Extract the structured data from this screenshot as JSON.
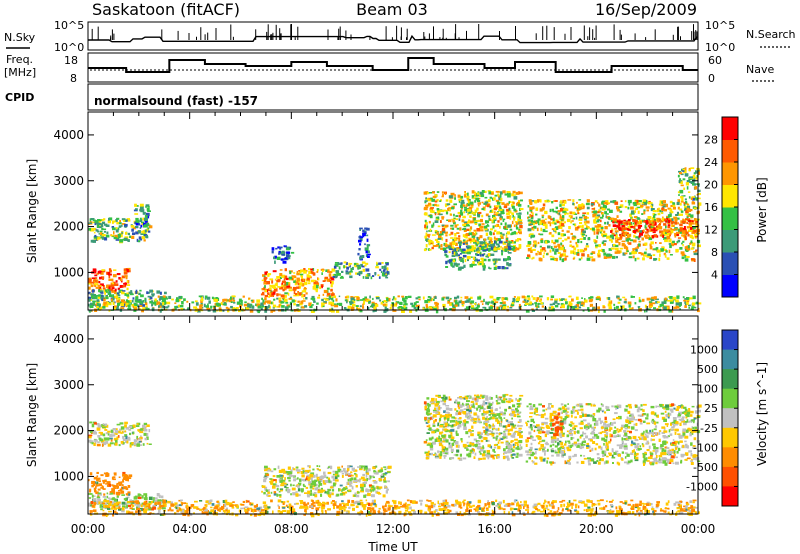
{
  "header": {
    "station": "Saskatoon (fitACF)",
    "beam": "Beam 03",
    "date": "16/Sep/2009"
  },
  "strip_nsky": {
    "left_label": "N.Sky",
    "left_top": "10^5",
    "left_bottom": "10^0",
    "right_label": "N.Search",
    "right_top": "10^5",
    "right_bottom": "10^0"
  },
  "strip_freq": {
    "left_label": "Freq.",
    "left_unit": "[MHz]",
    "left_top": "18",
    "left_bottom": "8",
    "right_label": "Nave",
    "right_top": "60",
    "right_bottom": "0"
  },
  "cpid": {
    "label": "CPID",
    "text": "normalsound (fast) -157"
  },
  "chart_data": [
    {
      "type": "heatmap",
      "name": "power",
      "ylabel": "Slant Range [km]",
      "xlabel": "",
      "ylim": [
        180,
        4500
      ],
      "y_ticks": [
        "1000",
        "2000",
        "3000",
        "4000"
      ],
      "colorbar_label": "Power [dB]",
      "colorbar_ticks": [
        "4",
        "8",
        "12",
        "16",
        "20",
        "24",
        "28"
      ],
      "colorbar_colors": [
        "#0000ff",
        "#2a50b4",
        "#3c9a78",
        "#34c044",
        "#ffe600",
        "#ff9600",
        "#ff5a00",
        "#ff0000"
      ],
      "echo_regions": [
        {
          "t": [
            0.0,
            1.6
          ],
          "r": [
            600,
            1100
          ],
          "val": 26
        },
        {
          "t": [
            0.0,
            3.0
          ],
          "r": [
            300,
            650
          ],
          "val": 12
        },
        {
          "t": [
            0.0,
            2.4
          ],
          "r": [
            1700,
            2200
          ],
          "val": 14
        },
        {
          "t": [
            1.8,
            2.4
          ],
          "r": [
            2000,
            2500
          ],
          "val": 10
        },
        {
          "t": [
            6.8,
            9.6
          ],
          "r": [
            500,
            1100
          ],
          "val": 22
        },
        {
          "t": [
            9.6,
            11.8
          ],
          "r": [
            900,
            1250
          ],
          "val": 12
        },
        {
          "t": [
            7.2,
            8.0
          ],
          "r": [
            1200,
            1600
          ],
          "val": 8
        },
        {
          "t": [
            10.6,
            11.0
          ],
          "r": [
            1300,
            2000
          ],
          "val": 6
        },
        {
          "t": [
            13.2,
            17.0
          ],
          "r": [
            1500,
            2800
          ],
          "val": 18
        },
        {
          "t": [
            14.0,
            16.6
          ],
          "r": [
            1100,
            1700
          ],
          "val": 12
        },
        {
          "t": [
            17.2,
            24.0
          ],
          "r": [
            1300,
            2600
          ],
          "val": 18
        },
        {
          "t": [
            20.5,
            24.0
          ],
          "r": [
            1800,
            2200
          ],
          "val": 26
        },
        {
          "t": [
            23.2,
            24.0
          ],
          "r": [
            2600,
            3300
          ],
          "val": 14
        },
        {
          "t": [
            0.0,
            24.0
          ],
          "r": [
            180,
            500
          ],
          "val": 16
        }
      ]
    },
    {
      "type": "heatmap",
      "name": "velocity",
      "ylabel": "Slant Range [km]",
      "xlabel": "Time UT",
      "ylim": [
        180,
        4500
      ],
      "y_ticks": [
        "1000",
        "2000",
        "3000",
        "4000"
      ],
      "x_ticks": [
        "00:00",
        "04:00",
        "08:00",
        "12:00",
        "16:00",
        "20:00",
        "00:00"
      ],
      "xlim": [
        0,
        24
      ],
      "colorbar_label": "Velocity [m s^-1]",
      "colorbar_ticks": [
        "1000",
        "500",
        "100",
        "25",
        "-25",
        "-100",
        "-500",
        "-1000"
      ],
      "colorbar_colors": [
        "#2a46c8",
        "#3c8ca0",
        "#3c9a50",
        "#6ecc3c",
        "#c0c0c0",
        "#ffc800",
        "#ff8c00",
        "#ff5000",
        "#ff0000"
      ],
      "echo_regions": [
        {
          "t": [
            0.0,
            1.6
          ],
          "r": [
            600,
            1100
          ],
          "val": -300
        },
        {
          "t": [
            0.0,
            3.0
          ],
          "r": [
            300,
            650
          ],
          "val": 50
        },
        {
          "t": [
            0.0,
            2.4
          ],
          "r": [
            1700,
            2200
          ],
          "val": 0
        },
        {
          "t": [
            6.8,
            11.8
          ],
          "r": [
            600,
            1250
          ],
          "val": 0
        },
        {
          "t": [
            13.2,
            17.0
          ],
          "r": [
            1400,
            2800
          ],
          "val": 0
        },
        {
          "t": [
            17.2,
            24.0
          ],
          "r": [
            1300,
            2600
          ],
          "val": 0
        },
        {
          "t": [
            18.2,
            18.6
          ],
          "r": [
            1900,
            2400
          ],
          "val": -700
        },
        {
          "t": [
            0.0,
            24.0
          ],
          "r": [
            180,
            500
          ],
          "val": -80
        }
      ]
    }
  ]
}
